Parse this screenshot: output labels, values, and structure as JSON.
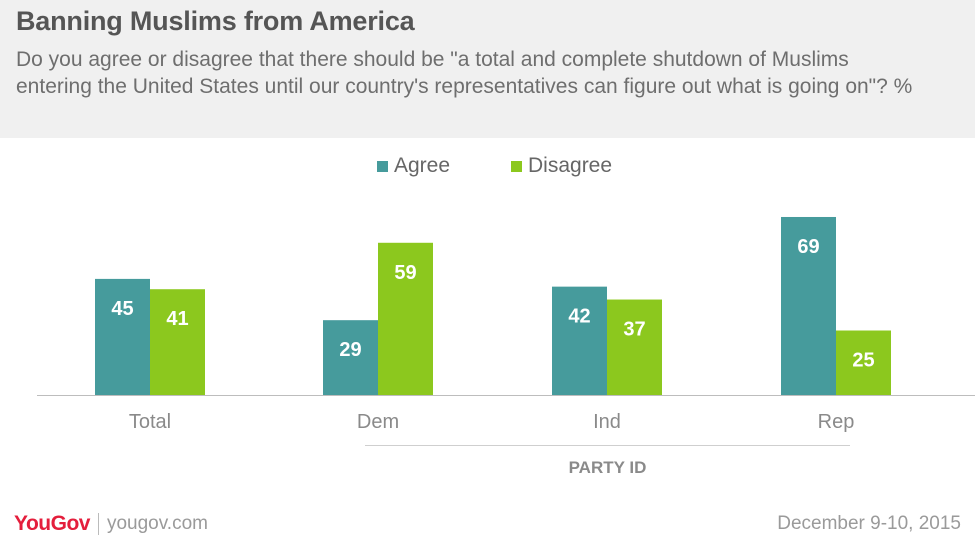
{
  "header": {
    "title": "Banning Muslims from America",
    "subtitle": "Do you agree or disagree that there should be \"a total and complete shutdown of Muslims entering the United States until our country's representatives can figure out what is going on\"? %"
  },
  "legend": {
    "items": [
      {
        "label": "Agree",
        "color": "#469b9c"
      },
      {
        "label": "Disagree",
        "color": "#8cc81e"
      }
    ]
  },
  "group_label": "PARTY ID",
  "footer": {
    "logo": "YouGov",
    "site": "yougov.com",
    "date": "December 9-10, 2015"
  },
  "chart_data": {
    "type": "bar",
    "categories": [
      "Total",
      "Dem",
      "Ind",
      "Rep"
    ],
    "series": [
      {
        "name": "Agree",
        "values": [
          45,
          29,
          42,
          69
        ],
        "color": "#469b9c"
      },
      {
        "name": "Disagree",
        "values": [
          41,
          59,
          37,
          25
        ],
        "color": "#8cc81e"
      }
    ],
    "ylim": [
      0,
      80
    ],
    "grid": false,
    "legend_position": "top-center",
    "data_labels": true
  }
}
